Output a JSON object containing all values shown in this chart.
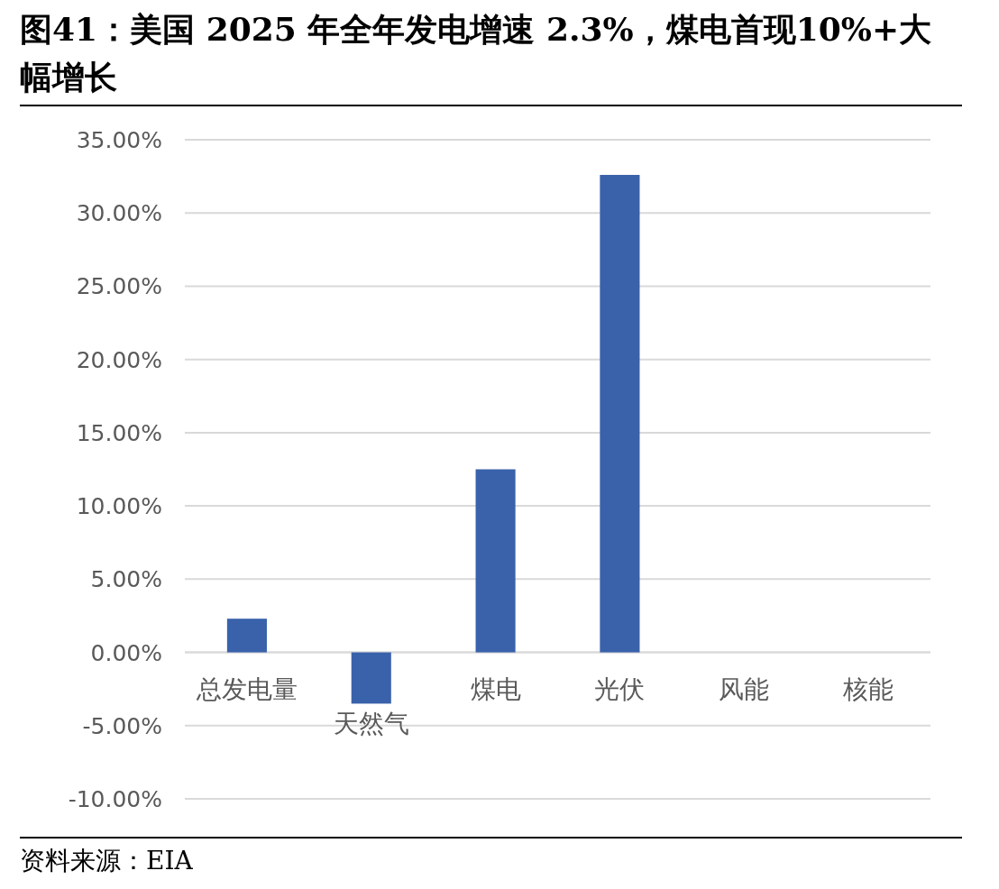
{
  "chart_data": {
    "type": "bar",
    "title": "图41：美国 2025 年全年发电增速 2.3%，煤电首现10%+大幅增长",
    "categories": [
      "总发电量",
      "天然气",
      "煤电",
      "光伏",
      "风能",
      "核能"
    ],
    "values": [
      2.3,
      -3.5,
      12.5,
      32.6,
      0,
      0
    ],
    "color": "#3a62ab",
    "ylim": [
      -10,
      35
    ],
    "yticks": [
      {
        "value": -10,
        "label": "-10.00%"
      },
      {
        "value": -5,
        "label": "-5.00%"
      },
      {
        "value": 0,
        "label": "0.00%"
      },
      {
        "value": 5,
        "label": "5.00%"
      },
      {
        "value": 10,
        "label": "10.00%"
      },
      {
        "value": 15,
        "label": "15.00%"
      },
      {
        "value": 20,
        "label": "20.00%"
      },
      {
        "value": 25,
        "label": "25.00%"
      },
      {
        "value": 30,
        "label": "30.00%"
      },
      {
        "value": 35,
        "label": "35.00%"
      }
    ],
    "grid": "y",
    "annotations": [
      "资料来源：EIA"
    ]
  }
}
